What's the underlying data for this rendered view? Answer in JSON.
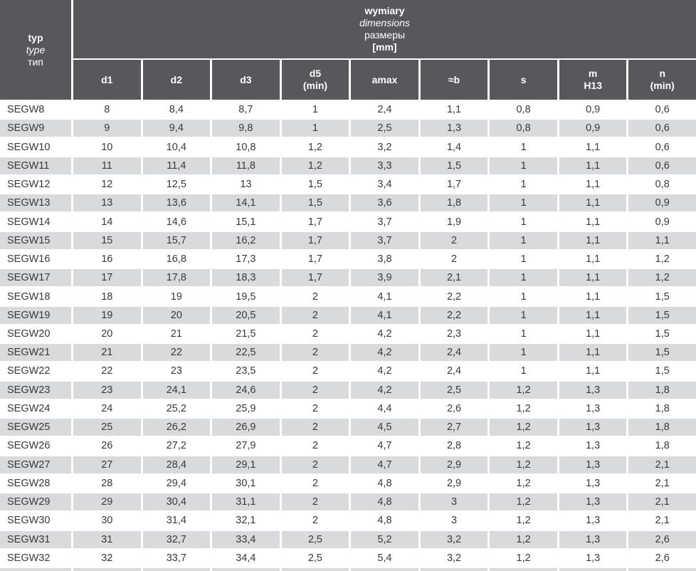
{
  "colors": {
    "header_bg": "#57585b",
    "header_text": "#ffffff",
    "row_alt": "#d9dadb",
    "row_base": "#ffffff",
    "body_text": "#38393b"
  },
  "table": {
    "corner_header": {
      "lines": [
        {
          "text": "typ",
          "style": "bold"
        },
        {
          "text": "type",
          "style": "italic"
        },
        {
          "text": "тип",
          "style": "normal"
        }
      ]
    },
    "group_header": {
      "lines": [
        {
          "text": "wymiary",
          "style": "bold"
        },
        {
          "text": "dimensions",
          "style": "italic"
        },
        {
          "text": "размеры",
          "style": "normal"
        },
        {
          "text": "[mm]",
          "style": "bold"
        }
      ]
    },
    "column_ids": [
      "d1",
      "d2",
      "d3",
      "d5-min",
      "amax",
      "b",
      "s",
      "m-h13",
      "n-min"
    ],
    "columns": [
      {
        "lines": [
          "d1"
        ]
      },
      {
        "lines": [
          "d2"
        ]
      },
      {
        "lines": [
          "d3"
        ]
      },
      {
        "lines": [
          "d5",
          "(min)"
        ]
      },
      {
        "lines": [
          "amax"
        ]
      },
      {
        "lines": [
          "≈b"
        ]
      },
      {
        "lines": [
          "s"
        ]
      },
      {
        "lines": [
          "m",
          "H13"
        ]
      },
      {
        "lines": [
          "n",
          "(min)"
        ]
      }
    ],
    "rows": [
      {
        "type": "SEGW8",
        "values": [
          "8",
          "8,4",
          "8,7",
          "1",
          "2,4",
          "1,1",
          "0,8",
          "0,9",
          "0,6"
        ]
      },
      {
        "type": "SEGW9",
        "values": [
          "9",
          "9,4",
          "9,8",
          "1",
          "2,5",
          "1,3",
          "0,8",
          "0,9",
          "0,6"
        ]
      },
      {
        "type": "SEGW10",
        "values": [
          "10",
          "10,4",
          "10,8",
          "1,2",
          "3,2",
          "1,4",
          "1",
          "1,1",
          "0,6"
        ]
      },
      {
        "type": "SEGW11",
        "values": [
          "11",
          "11,4",
          "11,8",
          "1,2",
          "3,3",
          "1,5",
          "1",
          "1,1",
          "0,6"
        ]
      },
      {
        "type": "SEGW12",
        "values": [
          "12",
          "12,5",
          "13",
          "1,5",
          "3,4",
          "1,7",
          "1",
          "1,1",
          "0,8"
        ]
      },
      {
        "type": "SEGW13",
        "values": [
          "13",
          "13,6",
          "14,1",
          "1,5",
          "3,6",
          "1,8",
          "1",
          "1,1",
          "0,9"
        ]
      },
      {
        "type": "SEGW14",
        "values": [
          "14",
          "14,6",
          "15,1",
          "1,7",
          "3,7",
          "1,9",
          "1",
          "1,1",
          "0,9"
        ]
      },
      {
        "type": "SEGW15",
        "values": [
          "15",
          "15,7",
          "16,2",
          "1,7",
          "3,7",
          "2",
          "1",
          "1,1",
          "1,1"
        ]
      },
      {
        "type": "SEGW16",
        "values": [
          "16",
          "16,8",
          "17,3",
          "1,7",
          "3,8",
          "2",
          "1",
          "1,1",
          "1,2"
        ]
      },
      {
        "type": "SEGW17",
        "values": [
          "17",
          "17,8",
          "18,3",
          "1,7",
          "3,9",
          "2,1",
          "1",
          "1,1",
          "1,2"
        ]
      },
      {
        "type": "SEGW18",
        "values": [
          "18",
          "19",
          "19,5",
          "2",
          "4,1",
          "2,2",
          "1",
          "1,1",
          "1,5"
        ]
      },
      {
        "type": "SEGW19",
        "values": [
          "19",
          "20",
          "20,5",
          "2",
          "4,1",
          "2,2",
          "1",
          "1,1",
          "1,5"
        ]
      },
      {
        "type": "SEGW20",
        "values": [
          "20",
          "21",
          "21,5",
          "2",
          "4,2",
          "2,3",
          "1",
          "1,1",
          "1,5"
        ]
      },
      {
        "type": "SEGW21",
        "values": [
          "21",
          "22",
          "22,5",
          "2",
          "4,2",
          "2,4",
          "1",
          "1,1",
          "1,5"
        ]
      },
      {
        "type": "SEGW22",
        "values": [
          "22",
          "23",
          "23,5",
          "2",
          "4,2",
          "2,4",
          "1",
          "1,1",
          "1,5"
        ]
      },
      {
        "type": "SEGW23",
        "values": [
          "23",
          "24,1",
          "24,6",
          "2",
          "4,2",
          "2,5",
          "1,2",
          "1,3",
          "1,8"
        ]
      },
      {
        "type": "SEGW24",
        "values": [
          "24",
          "25,2",
          "25,9",
          "2",
          "4,4",
          "2,6",
          "1,2",
          "1,3",
          "1,8"
        ]
      },
      {
        "type": "SEGW25",
        "values": [
          "25",
          "26,2",
          "26,9",
          "2",
          "4,5",
          "2,7",
          "1,2",
          "1,3",
          "1,8"
        ]
      },
      {
        "type": "SEGW26",
        "values": [
          "26",
          "27,2",
          "27,9",
          "2",
          "4,7",
          "2,8",
          "1,2",
          "1,3",
          "1,8"
        ]
      },
      {
        "type": "SEGW27",
        "values": [
          "27",
          "28,4",
          "29,1",
          "2",
          "4,7",
          "2,9",
          "1,2",
          "1,3",
          "2,1"
        ]
      },
      {
        "type": "SEGW28",
        "values": [
          "28",
          "29,4",
          "30,1",
          "2",
          "4,8",
          "2,9",
          "1,2",
          "1,3",
          "2,1"
        ]
      },
      {
        "type": "SEGW29",
        "values": [
          "29",
          "30,4",
          "31,1",
          "2",
          "4,8",
          "3",
          "1,2",
          "1,3",
          "2,1"
        ]
      },
      {
        "type": "SEGW30",
        "values": [
          "30",
          "31,4",
          "32,1",
          "2",
          "4,8",
          "3",
          "1,2",
          "1,3",
          "2,1"
        ]
      },
      {
        "type": "SEGW31",
        "values": [
          "31",
          "32,7",
          "33,4",
          "2,5",
          "5,2",
          "3,2",
          "1,2",
          "1,3",
          "2,6"
        ]
      },
      {
        "type": "SEGW32",
        "values": [
          "32",
          "33,7",
          "34,4",
          "2,5",
          "5,4",
          "3,2",
          "1,2",
          "1,3",
          "2,6"
        ]
      }
    ]
  }
}
